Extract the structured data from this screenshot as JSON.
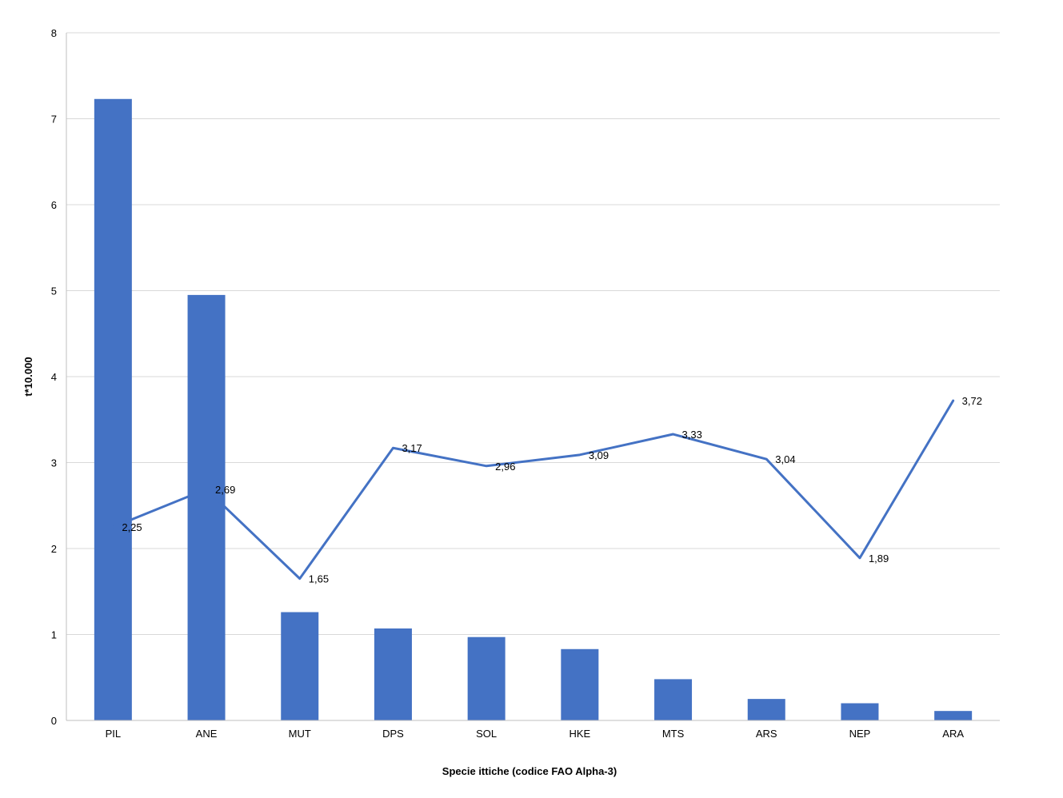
{
  "chart_data": {
    "type": "bar",
    "categories": [
      "PIL",
      "ANE",
      "MUT",
      "DPS",
      "SOL",
      "HKE",
      "MTS",
      "ARS",
      "NEP",
      "ARA"
    ],
    "series": [
      {
        "type": "bar",
        "values": [
          7.23,
          4.95,
          1.26,
          1.07,
          0.97,
          0.83,
          0.48,
          0.25,
          0.2,
          0.11
        ],
        "color": "#4472C4"
      },
      {
        "type": "line",
        "values": [
          2.25,
          2.69,
          1.65,
          3.17,
          2.96,
          3.09,
          3.33,
          3.04,
          1.89,
          3.72
        ],
        "labels": [
          "2,25",
          "2,69",
          "1,65",
          "3,17",
          "2,96",
          "3,09",
          "3,33",
          "3,04",
          "1,89",
          "3,72"
        ],
        "color": "#4472C4"
      }
    ],
    "xlabel": "Specie ittiche (codice FAO Alpha-3)",
    "ylabel": "t*10.000",
    "ylim": [
      0,
      8
    ],
    "yticks": [
      "0",
      "1",
      "2",
      "3",
      "4",
      "5",
      "6",
      "7",
      "8"
    ],
    "grid": true,
    "gridColor": "#D9D9D9",
    "axisColor": "#BFBFBF"
  }
}
